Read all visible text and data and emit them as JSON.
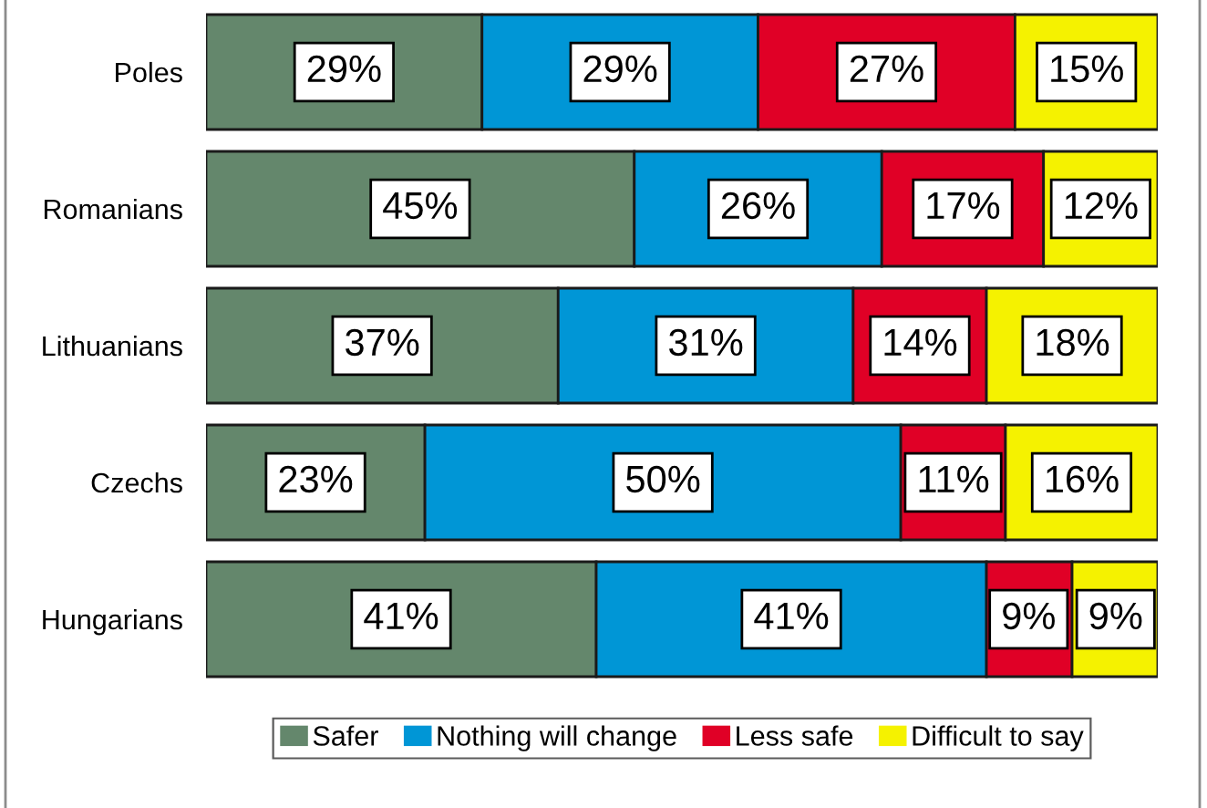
{
  "chart_data": {
    "type": "bar",
    "orientation": "horizontal",
    "stacked": true,
    "categories": [
      "Poles",
      "Romanians",
      "Lithuanians",
      "Czechs",
      "Hungarians"
    ],
    "series": [
      {
        "name": "Safer",
        "color": "#64876c",
        "values": [
          29,
          45,
          37,
          23,
          41
        ],
        "value_labels": [
          "29%",
          "45%",
          "37%",
          "23%",
          "41%"
        ]
      },
      {
        "name": "Nothing will change",
        "color": "#0096d6",
        "values": [
          29,
          26,
          31,
          50,
          41
        ],
        "value_labels": [
          "29%",
          "26%",
          "31%",
          "50%",
          "41%"
        ]
      },
      {
        "name": "Less safe",
        "color": "#e00026",
        "values": [
          27,
          17,
          14,
          11,
          9
        ],
        "value_labels": [
          "27%",
          "17%",
          "14%",
          "11%",
          "9%"
        ]
      },
      {
        "name": "Difficult to say",
        "color": "#f5f200",
        "values": [
          15,
          12,
          18,
          16,
          9
        ],
        "value_labels": [
          "15%",
          "12%",
          "18%",
          "16%",
          "9%"
        ]
      }
    ],
    "legend": "bottom",
    "tick_labels": "y"
  }
}
